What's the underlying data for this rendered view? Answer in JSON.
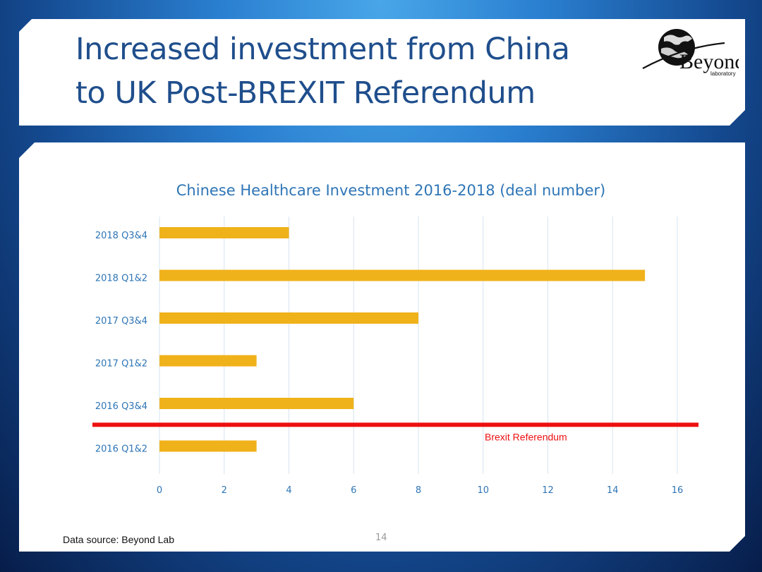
{
  "slide": {
    "title_line1": "Increased investment from China",
    "title_line2": "to UK Post-BREXIT Referendum",
    "source": "Data source: Beyond Lab",
    "page_number": "14"
  },
  "logo": {
    "name": "Beyond",
    "subtitle": "laboratory",
    "icon": "globe-icon"
  },
  "colors": {
    "title": "#1f4e8c",
    "bar": "#f0b21b",
    "axis_text": "#2e75b6",
    "reference_line": "#ee1111",
    "gridline": "#d6e4f0"
  },
  "chart_data": {
    "type": "bar",
    "orientation": "horizontal",
    "title": "Chinese Healthcare Investment 2016-2018 (deal number)",
    "categories": [
      "2018 Q3&4",
      "2018 Q1&2",
      "2017 Q3&4",
      "2017 Q1&2",
      "2016 Q3&4",
      "2016 Q1&2"
    ],
    "values": [
      4,
      15,
      8,
      3,
      6,
      3
    ],
    "xlim": [
      0,
      16
    ],
    "xticks": [
      0,
      2,
      4,
      6,
      8,
      10,
      12,
      14,
      16
    ],
    "grid": true,
    "annotation": {
      "label": "Brexit Referendum",
      "between": [
        "2016 Q3&4",
        "2016 Q1&2"
      ]
    }
  }
}
